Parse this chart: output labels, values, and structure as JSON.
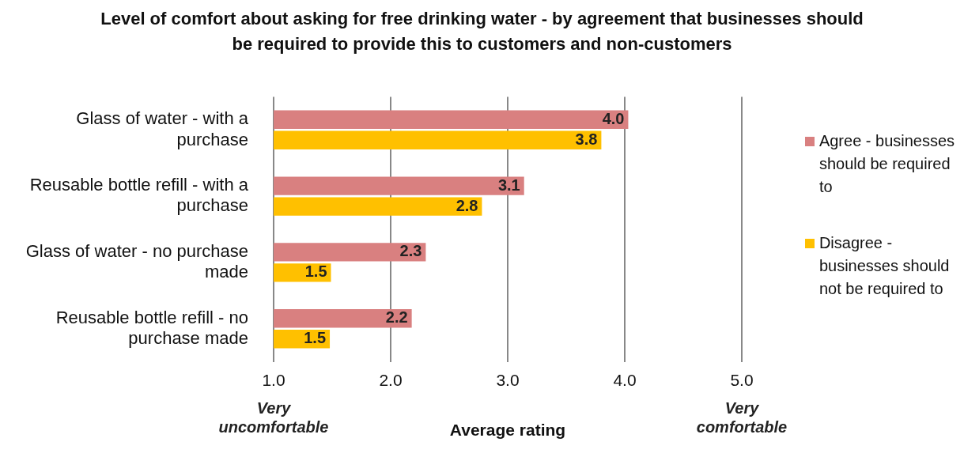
{
  "chart_data": {
    "type": "bar",
    "orientation": "horizontal",
    "title": "Level of comfort about asking for free drinking water - by agreement that businesses should be required to provide this to customers and non-customers",
    "xlabel": "Average rating",
    "categories": [
      "Glass of water - with a purchase",
      "Reusable bottle refill - with a purchase",
      "Glass of water - no purchase made",
      "Reusable bottle refill - no purchase made"
    ],
    "series": [
      {
        "name": "Agree - businesses should be required to",
        "color": "#d98080",
        "values": [
          4.03,
          3.14,
          2.3,
          2.18
        ],
        "value_labels": [
          "4.0",
          "3.1",
          "2.3",
          "2.2"
        ]
      },
      {
        "name": "Disagree - businesses should not be required to",
        "color": "#ffc000",
        "values": [
          3.8,
          2.78,
          1.49,
          1.48
        ],
        "value_labels": [
          "3.8",
          "2.8",
          "1.5",
          "1.5"
        ]
      }
    ],
    "xlim": [
      1,
      5
    ],
    "xticks": [
      {
        "value": 1,
        "label": "1.0"
      },
      {
        "value": 2,
        "label": "2.0"
      },
      {
        "value": 3,
        "label": "3.0"
      },
      {
        "value": 4,
        "label": "4.0"
      },
      {
        "value": 5,
        "label": "5.0"
      }
    ],
    "grid": "x",
    "legend": "right",
    "annotations": [
      "Very uncomfortable",
      "Very comfortable"
    ]
  }
}
